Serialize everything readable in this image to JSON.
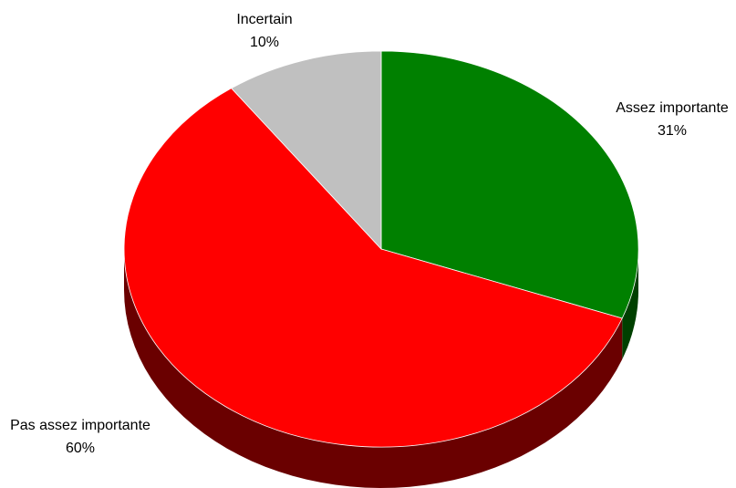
{
  "chart_data": {
    "type": "pie",
    "style": "3d",
    "slices": [
      {
        "label": "Assez importante",
        "value": 31,
        "value_label": "31%",
        "color": "#008000",
        "side_color": "#004000"
      },
      {
        "label": "Pas assez importante",
        "value": 60,
        "value_label": "60%",
        "color": "#FF0000",
        "side_color": "#6a0000"
      },
      {
        "label": "Incertain",
        "value": 10,
        "value_label": "10%",
        "color": "#C0C0C0",
        "side_color": "#7a7a7a"
      }
    ],
    "legend": "none"
  }
}
